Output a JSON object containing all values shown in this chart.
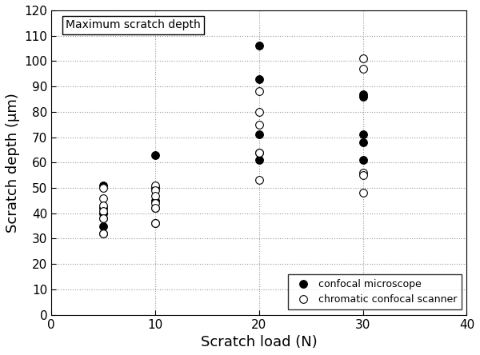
{
  "confocal_microscope": {
    "x": [
      5,
      5,
      5,
      5,
      5,
      5,
      10,
      10,
      10,
      10,
      10,
      20,
      20,
      20,
      20,
      20,
      30,
      30,
      30,
      30,
      30
    ],
    "y": [
      51,
      42,
      40,
      38,
      35,
      32,
      63,
      50,
      45,
      42,
      36,
      106,
      93,
      71,
      64,
      61,
      87,
      86,
      71,
      68,
      61
    ]
  },
  "chromatic_confocal_scanner": {
    "x": [
      5,
      5,
      5,
      5,
      5,
      5,
      10,
      10,
      10,
      10,
      10,
      10,
      20,
      20,
      20,
      20,
      20,
      30,
      30,
      30,
      30,
      30
    ],
    "y": [
      50,
      46,
      43,
      41,
      38,
      32,
      51,
      49,
      47,
      44,
      42,
      36,
      88,
      80,
      75,
      64,
      53,
      101,
      97,
      56,
      55,
      48
    ]
  },
  "xlabel": "Scratch load (N)",
  "ylabel": "Scratch depth (μm)",
  "annotation": "Maximum scratch depth",
  "xlim": [
    0,
    40
  ],
  "ylim": [
    0,
    120
  ],
  "xticks": [
    0,
    10,
    20,
    30,
    40
  ],
  "yticks": [
    0,
    10,
    20,
    30,
    40,
    50,
    60,
    70,
    80,
    90,
    100,
    110,
    120
  ],
  "legend_label_filled": "confocal microscope",
  "legend_label_open": "chromatic confocal scanner",
  "marker_size": 7,
  "face_color_filled": "black",
  "face_color_open": "white",
  "edge_color": "black",
  "figsize": [
    6.0,
    4.44
  ],
  "dpi": 100
}
